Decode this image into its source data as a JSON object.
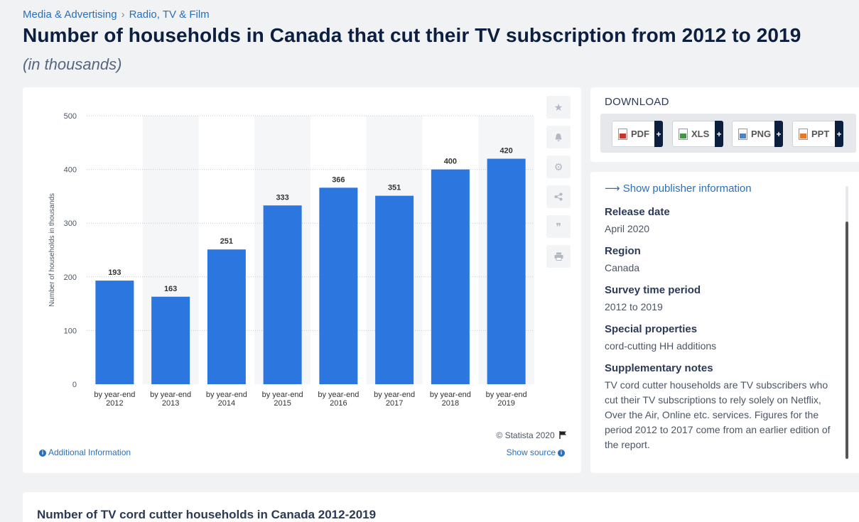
{
  "breadcrumb": {
    "item1": "Media & Advertising",
    "sep": "›",
    "item2": "Radio, TV & Film"
  },
  "page": {
    "title": "Number of households in Canada that cut their TV subscription from 2012 to 2019",
    "subtitle": "(in thousands)"
  },
  "chart_data": {
    "type": "bar",
    "categories": [
      [
        "by year-end",
        "2012"
      ],
      [
        "by year-end",
        "2013"
      ],
      [
        "by year-end",
        "2014"
      ],
      [
        "by year-end",
        "2015"
      ],
      [
        "by year-end",
        "2016"
      ],
      [
        "by year-end",
        "2017"
      ],
      [
        "by year-end",
        "2018"
      ],
      [
        "by year-end",
        "2019"
      ]
    ],
    "values": [
      193,
      163,
      251,
      333,
      366,
      351,
      400,
      420
    ],
    "ylabel": "Number of households in thousands",
    "ylim": [
      0,
      500
    ],
    "yticks": [
      0,
      100,
      200,
      300,
      400,
      500
    ],
    "bar_color": "#2c76df",
    "alt_band_color": "#f5f6f8",
    "grid": true
  },
  "chart_footer": {
    "copyright": "© Statista 2020",
    "additional_info": "Additional Information",
    "show_source": "Show source"
  },
  "download": {
    "title": "DOWNLOAD",
    "buttons": [
      {
        "label": "PDF",
        "icon": "pdf-file-icon",
        "color": "#c0392b"
      },
      {
        "label": "XLS",
        "icon": "xls-file-icon",
        "color": "#3d9a3d"
      },
      {
        "label": "PNG",
        "icon": "png-file-icon",
        "color": "#4a84c4"
      },
      {
        "label": "PPT",
        "icon": "ppt-file-icon",
        "color": "#e07b2a"
      }
    ],
    "plus": "+"
  },
  "info": {
    "publisher_link": "Show publisher information",
    "items": [
      {
        "label": "Release date",
        "value": "April 2020"
      },
      {
        "label": "Region",
        "value": "Canada"
      },
      {
        "label": "Survey time period",
        "value": "2012 to 2019"
      },
      {
        "label": "Special properties",
        "value": "cord-cutting HH additions"
      },
      {
        "label": "Supplementary notes",
        "value": "TV cord cutter households are TV subscribers who cut their TV subscriptions to rely solely on Netflix, Over the Air, Online etc. services. Figures for the period 2012 to 2017 come from an earlier edition of the report."
      }
    ]
  },
  "tools": [
    "star-icon",
    "bell-icon",
    "gear-icon",
    "share-icon",
    "quote-icon",
    "print-icon"
  ],
  "bottom": {
    "title": "Number of TV cord cutter households in Canada 2012-2019"
  }
}
